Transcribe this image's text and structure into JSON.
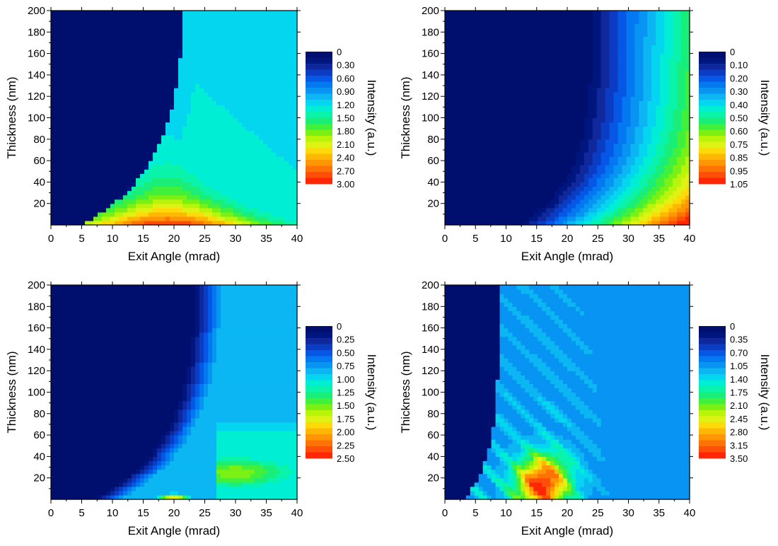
{
  "colors": {
    "colormap": [
      "#000F6E",
      "#00167F",
      "#0F299C",
      "#0A3DC4",
      "#0657E6",
      "#0478F0",
      "#0794F2",
      "#0BB6F2",
      "#04D6F0",
      "#00EFD4",
      "#0AF3AA",
      "#19EE79",
      "#41F03B",
      "#7AF014",
      "#B8F50A",
      "#E0F214",
      "#FFDA0A",
      "#FFB705",
      "#FF9603",
      "#FF7205",
      "#FF4E08",
      "#FF2606"
    ]
  },
  "chart_data": [
    {
      "type": "heatmap",
      "xlabel": "Exit Angle (mrad)",
      "ylabel": "Thickness (nm)",
      "xlim": [
        0,
        40
      ],
      "ylim": [
        0,
        200
      ],
      "xticks": [
        "0",
        "5",
        "10",
        "15",
        "20",
        "25",
        "30",
        "35",
        "40"
      ],
      "yticks": [
        "20",
        "40",
        "60",
        "80",
        "100",
        "120",
        "140",
        "160",
        "180",
        "200"
      ],
      "colorbar_title": "Intensity (a.u.)",
      "colorbar_labels": [
        "0",
        "0.30",
        "0.60",
        "0.90",
        "1.20",
        "1.50",
        "1.80",
        "2.10",
        "2.40",
        "2.70",
        "3.00"
      ],
      "zmax": 3.0,
      "model": "critical_peak",
      "model_params": {
        "critical_angle": 20,
        "peak": 3.0,
        "plateau": 1.15
      }
    },
    {
      "type": "heatmap",
      "xlabel": "Exit Angle (mrad)",
      "ylabel": "Thickness (nm)",
      "xlim": [
        0,
        40
      ],
      "ylim": [
        0,
        200
      ],
      "xticks": [
        "0",
        "5",
        "10",
        "15",
        "20",
        "25",
        "30",
        "35",
        "40"
      ],
      "yticks": [
        "20",
        "40",
        "60",
        "80",
        "100",
        "120",
        "140",
        "160",
        "180",
        "200"
      ],
      "colorbar_title": "Intensity (a.u.)",
      "colorbar_labels": [
        "0",
        "0.10",
        "0.20",
        "0.30",
        "0.40",
        "0.50",
        "0.60",
        "0.75",
        "0.85",
        "0.95",
        "1.05"
      ],
      "zmax": 1.05,
      "model": "monotonic",
      "model_params": {
        "onset_angle": 11,
        "max": 1.05
      }
    },
    {
      "type": "heatmap",
      "xlabel": "Exit Angle (mrad)",
      "ylabel": "Thickness (nm)",
      "xlim": [
        0,
        40
      ],
      "ylim": [
        0,
        200
      ],
      "xticks": [
        "0",
        "5",
        "10",
        "15",
        "20",
        "25",
        "30",
        "35",
        "40"
      ],
      "yticks": [
        "20",
        "40",
        "60",
        "80",
        "100",
        "120",
        "140",
        "160",
        "180",
        "200"
      ],
      "colorbar_title": "Intensity (a.u.)",
      "colorbar_labels": [
        "0",
        "0.25",
        "0.50",
        "0.75",
        "1.00",
        "1.25",
        "1.50",
        "1.75",
        "2.00",
        "2.25",
        "2.50"
      ],
      "zmax": 2.5,
      "model": "double_critical",
      "model_params": {
        "critical_angle_1": 20,
        "critical_angle_2": 27,
        "peak": 2.5,
        "plateau": 0.95
      }
    },
    {
      "type": "heatmap",
      "xlabel": "Exit Angle (mrad)",
      "ylabel": "Thickness (nm)",
      "xlim": [
        0,
        40
      ],
      "ylim": [
        0,
        200
      ],
      "xticks": [
        "0",
        "5",
        "10",
        "15",
        "20",
        "25",
        "30",
        "35",
        "40"
      ],
      "yticks": [
        "20",
        "40",
        "60",
        "80",
        "100",
        "120",
        "140",
        "160",
        "180",
        "200"
      ],
      "colorbar_title": "Intensity (a.u.)",
      "colorbar_labels": [
        "0",
        "0.35",
        "0.70",
        "1.05",
        "1.40",
        "1.75",
        "2.10",
        "2.45",
        "2.80",
        "3.15",
        "3.50"
      ],
      "zmax": 3.5,
      "model": "fringes",
      "model_params": {
        "peak_angle": 16,
        "peak": 3.5,
        "plateau": 1.0
      }
    }
  ]
}
